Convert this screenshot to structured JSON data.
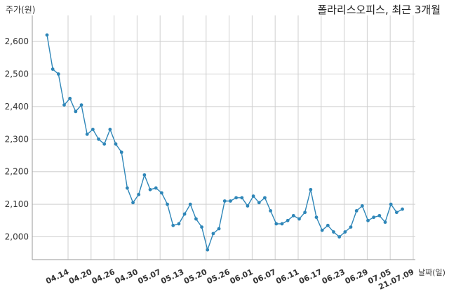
{
  "chart_data": {
    "type": "line",
    "title": "폴라리스오피스, 최근 3개월",
    "ylabel": "주가(원)",
    "xlabel": "날짜(일)",
    "ylim": [
      1930,
      2680
    ],
    "y_ticks": [
      2000,
      2100,
      2200,
      2300,
      2400,
      2500,
      2600
    ],
    "y_tick_labels": [
      "2,000",
      "2,100",
      "2,200",
      "2,300",
      "2,400",
      "2,500",
      "2,600"
    ],
    "x_tick_labels": [
      "04.14",
      "04.20",
      "04.26",
      "04.30",
      "05.07",
      "05.13",
      "05.20",
      "05.26",
      "06.01",
      "06.07",
      "06.11",
      "06.17",
      "06.23",
      "06.29",
      "07.05",
      "21.07.09"
    ],
    "grid": true,
    "line_color": "#2e86b8",
    "series": [
      {
        "values": [
          2620,
          2515,
          2500,
          2405,
          2425,
          2385,
          2405,
          2315,
          2330,
          2300,
          2285,
          2330,
          2285,
          2260,
          2150,
          2105,
          2130,
          2190,
          2145,
          2150,
          2135,
          2100,
          2035,
          2040,
          2070,
          2100,
          2055,
          2030,
          1960,
          2010,
          2025,
          2110,
          2110,
          2120,
          2120,
          2095,
          2125,
          2105,
          2120,
          2080,
          2040,
          2040,
          2050,
          2065,
          2055,
          2075,
          2145,
          2060,
          2020,
          2035,
          2015,
          2000,
          2015,
          2030,
          2080,
          2095,
          2050,
          2060,
          2065,
          2045,
          2100,
          2075,
          2085
        ]
      }
    ]
  }
}
